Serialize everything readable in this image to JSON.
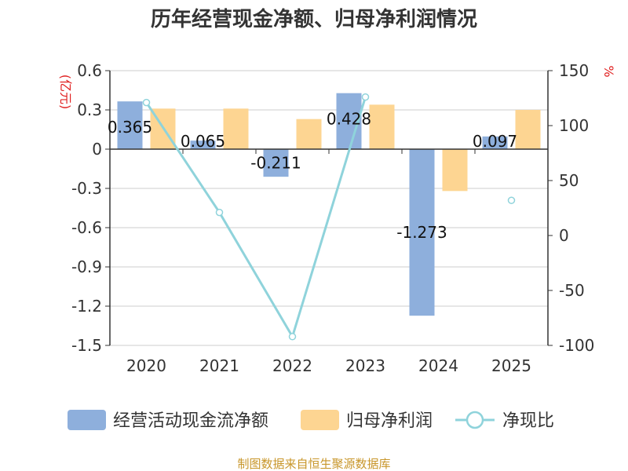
{
  "chart_data": {
    "type": "bar",
    "title": "历年经营现金净额、归母净利润情况",
    "categories": [
      "2020",
      "2021",
      "2022",
      "2023",
      "2024",
      "2025"
    ],
    "y_left": {
      "unit": "(亿元)",
      "ylim": [
        -1.5,
        0.6
      ],
      "ticks": [
        0.6,
        0.3,
        0,
        -0.3,
        -0.6,
        -0.9,
        -1.2,
        -1.5
      ],
      "tick_labels": [
        "0.6",
        "0.3",
        "0",
        "-0.3",
        "-0.6",
        "-0.9",
        "-1.2",
        "-1.5"
      ]
    },
    "y_right": {
      "unit": "%",
      "ylim": [
        -100,
        150
      ],
      "ticks": [
        150,
        100,
        50,
        0,
        -50,
        -100
      ],
      "tick_labels": [
        "150",
        "100",
        "50",
        "0",
        "-50",
        "-100"
      ]
    },
    "series": [
      {
        "name": "经营活动现金流净额",
        "type": "bar",
        "axis": "left",
        "color": "#8eafdc",
        "values": [
          0.365,
          0.065,
          -0.211,
          0.428,
          -1.273,
          0.097
        ],
        "labels": [
          "0.365",
          "0.065",
          "-0.211",
          "0.428",
          "-1.273",
          "0.097"
        ]
      },
      {
        "name": "归母净利润",
        "type": "bar",
        "axis": "left",
        "color": "#fdd592",
        "values": [
          0.31,
          0.31,
          0.23,
          0.34,
          -0.32,
          0.3
        ]
      },
      {
        "name": "净现比",
        "type": "line",
        "axis": "right",
        "color": "#8fd3db",
        "values": [
          121,
          21,
          -92,
          126,
          null,
          32
        ]
      }
    ],
    "source": "制图数据来自恒生聚源数据库"
  }
}
